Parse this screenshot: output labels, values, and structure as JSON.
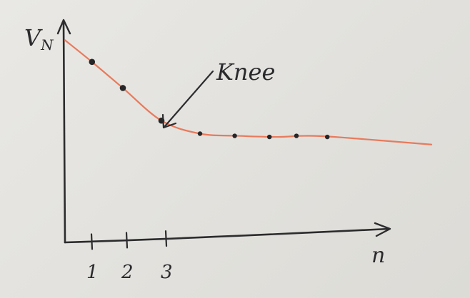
{
  "chart_data": {
    "type": "line",
    "ylabel": "V",
    "ylabel_sub": "N",
    "xlabel": "n",
    "x_ticks": [
      "1",
      "2",
      "3"
    ],
    "annotation": "Knee",
    "grid": false,
    "series": [
      {
        "color": "#e87a5c",
        "points": [
          {
            "x": 0.0,
            "y": 9.3
          },
          {
            "x": 0.7,
            "y": 8.3
          },
          {
            "x": 1.5,
            "y": 7.1
          },
          {
            "x": 2.5,
            "y": 5.6
          },
          {
            "x": 3.5,
            "y": 5.0
          },
          {
            "x": 4.5,
            "y": 4.9
          },
          {
            "x": 5.5,
            "y": 4.85
          },
          {
            "x": 6.2,
            "y": 4.9
          },
          {
            "x": 7.0,
            "y": 4.85
          },
          {
            "x": 9.5,
            "y": 4.5
          }
        ]
      }
    ],
    "markers": [
      {
        "x": 0.7,
        "y": 8.3
      },
      {
        "x": 1.5,
        "y": 7.1
      },
      {
        "x": 2.5,
        "y": 5.6
      },
      {
        "x": 3.5,
        "y": 5.0
      },
      {
        "x": 4.4,
        "y": 4.9
      },
      {
        "x": 5.3,
        "y": 4.85
      },
      {
        "x": 6.0,
        "y": 4.9
      },
      {
        "x": 6.8,
        "y": 4.85
      }
    ],
    "knee_point": {
      "x": 2.5,
      "y": 5.6
    }
  }
}
